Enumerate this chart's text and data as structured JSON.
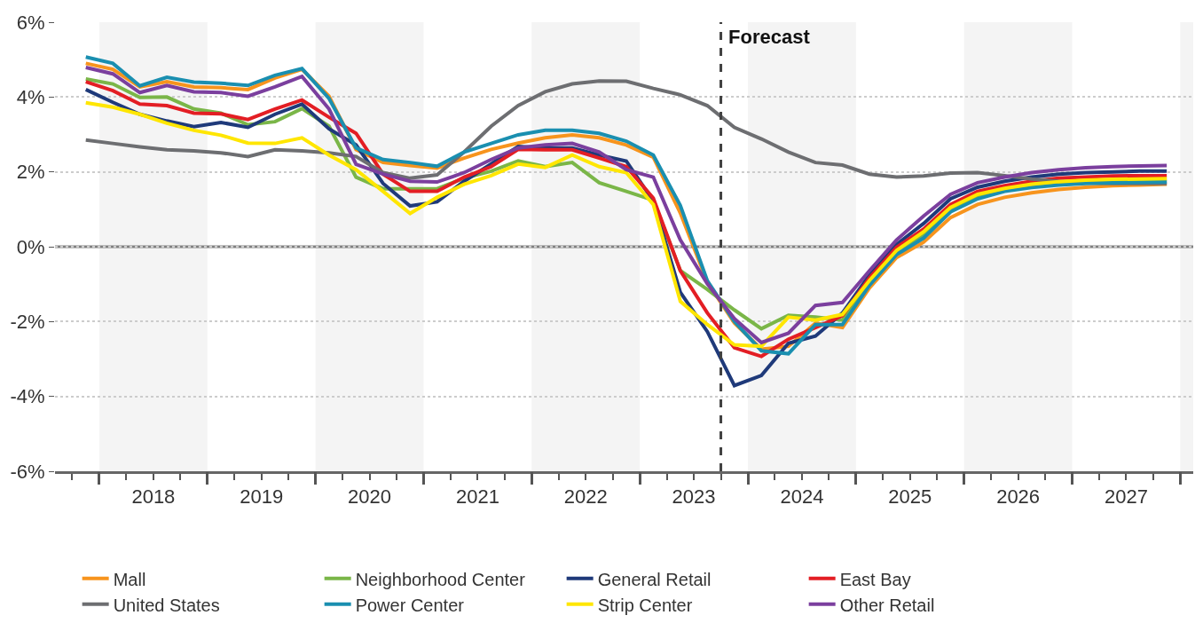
{
  "chart_data": {
    "type": "line",
    "x": [
      2017.875,
      2018.125,
      2018.375,
      2018.625,
      2018.875,
      2019.125,
      2019.375,
      2019.625,
      2019.875,
      2020.125,
      2020.375,
      2020.625,
      2020.875,
      2021.125,
      2021.375,
      2021.625,
      2021.875,
      2022.125,
      2022.375,
      2022.625,
      2022.875,
      2023.125,
      2023.375,
      2023.625,
      2023.875,
      2024.125,
      2024.375,
      2024.625,
      2024.875,
      2025.125,
      2025.375,
      2025.625,
      2025.875,
      2026.125,
      2026.375,
      2026.625,
      2026.875,
      2027.125,
      2027.375,
      2027.625,
      2027.875
    ],
    "series": [
      {
        "name": "Mall",
        "color": "#f7941d",
        "values": [
          4.9,
          4.74,
          4.27,
          4.41,
          4.27,
          4.25,
          4.2,
          4.51,
          4.74,
          4.02,
          2.6,
          2.25,
          2.17,
          2.1,
          2.37,
          2.6,
          2.77,
          2.91,
          2.99,
          2.91,
          2.72,
          2.39,
          0.9,
          -0.95,
          -2.04,
          -2.74,
          -2.66,
          -2.04,
          -2.16,
          -1.1,
          -0.29,
          0.12,
          0.78,
          1.13,
          1.32,
          1.44,
          1.53,
          1.59,
          1.63,
          1.65,
          1.67
        ]
      },
      {
        "name": "Neighborhood Center",
        "color": "#7ab648",
        "values": [
          4.48,
          4.35,
          3.99,
          4.0,
          3.68,
          3.57,
          3.26,
          3.34,
          3.69,
          3.22,
          1.86,
          1.55,
          1.55,
          1.55,
          1.83,
          2.02,
          2.29,
          2.14,
          2.25,
          1.71,
          1.48,
          1.24,
          -0.64,
          -1.14,
          -1.69,
          -2.19,
          -1.83,
          -1.88,
          -1.96,
          -0.99,
          -0.13,
          0.31,
          1.01,
          1.36,
          1.53,
          1.63,
          1.71,
          1.75,
          1.77,
          1.78,
          1.79
        ]
      },
      {
        "name": "General Retail",
        "color": "#1f3a7a",
        "values": [
          4.2,
          3.86,
          3.54,
          3.36,
          3.21,
          3.32,
          3.19,
          3.54,
          3.81,
          3.15,
          2.72,
          1.69,
          1.09,
          1.2,
          1.75,
          2.21,
          2.68,
          2.64,
          2.64,
          2.45,
          2.29,
          1.22,
          -1.22,
          -2.27,
          -3.71,
          -3.44,
          -2.58,
          -2.39,
          -1.77,
          -0.75,
          0.06,
          0.62,
          1.28,
          1.59,
          1.75,
          1.86,
          1.94,
          1.98,
          2.0,
          2.02,
          2.02
        ]
      },
      {
        "name": "East Bay",
        "color": "#e31e24",
        "values": [
          4.41,
          4.17,
          3.81,
          3.77,
          3.57,
          3.55,
          3.4,
          3.68,
          3.92,
          3.46,
          3.03,
          1.94,
          1.48,
          1.48,
          1.86,
          2.14,
          2.6,
          2.59,
          2.59,
          2.37,
          2.14,
          1.3,
          -0.64,
          -1.77,
          -2.7,
          -2.93,
          -2.47,
          -2.16,
          -1.84,
          -0.83,
          -0.02,
          0.47,
          1.13,
          1.48,
          1.63,
          1.75,
          1.83,
          1.86,
          1.89,
          1.9,
          1.9
        ]
      },
      {
        "name": "United States",
        "color": "#6d6e71",
        "values": [
          2.85,
          2.76,
          2.67,
          2.59,
          2.56,
          2.51,
          2.41,
          2.59,
          2.56,
          2.51,
          2.41,
          1.98,
          1.83,
          1.92,
          2.53,
          3.22,
          3.77,
          4.14,
          4.35,
          4.43,
          4.42,
          4.23,
          4.06,
          3.77,
          3.19,
          2.88,
          2.53,
          2.25,
          2.18,
          1.94,
          1.86,
          1.89,
          1.97,
          1.98,
          1.9,
          1.81,
          1.75,
          1.71,
          1.69,
          1.69,
          1.69
        ]
      },
      {
        "name": "Power Center",
        "color": "#1a8fb0",
        "values": [
          5.07,
          4.9,
          4.3,
          4.53,
          4.4,
          4.37,
          4.31,
          4.58,
          4.76,
          3.96,
          2.64,
          2.33,
          2.25,
          2.15,
          2.53,
          2.76,
          2.99,
          3.11,
          3.11,
          3.03,
          2.82,
          2.45,
          1.1,
          -0.91,
          -2.0,
          -2.78,
          -2.86,
          -2.08,
          -2.08,
          -1.03,
          -0.21,
          0.23,
          0.93,
          1.28,
          1.48,
          1.58,
          1.65,
          1.69,
          1.71,
          1.72,
          1.73
        ]
      },
      {
        "name": "Strip Center",
        "color": "#ffe600",
        "values": [
          3.85,
          3.73,
          3.54,
          3.3,
          3.11,
          2.98,
          2.77,
          2.76,
          2.91,
          2.45,
          2.06,
          1.48,
          0.89,
          1.32,
          1.67,
          1.9,
          2.21,
          2.12,
          2.45,
          2.14,
          1.98,
          1.13,
          -1.46,
          -2.08,
          -2.62,
          -2.66,
          -1.88,
          -1.96,
          -1.81,
          -0.9,
          -0.1,
          0.4,
          1.05,
          1.4,
          1.56,
          1.67,
          1.74,
          1.78,
          1.8,
          1.81,
          1.82
        ]
      },
      {
        "name": "Other Retail",
        "color": "#7b3f9e",
        "values": [
          4.79,
          4.62,
          4.12,
          4.31,
          4.14,
          4.12,
          4.02,
          4.27,
          4.55,
          3.68,
          2.2,
          1.94,
          1.75,
          1.73,
          1.98,
          2.33,
          2.64,
          2.72,
          2.76,
          2.53,
          2.06,
          1.86,
          0.18,
          -0.99,
          -1.92,
          -2.56,
          -2.31,
          -1.57,
          -1.49,
          -0.64,
          0.18,
          0.82,
          1.4,
          1.71,
          1.86,
          1.98,
          2.06,
          2.11,
          2.14,
          2.16,
          2.17
        ]
      }
    ],
    "xlim": [
      2017.59,
      2028.12
    ],
    "xticks": [
      {
        "value": 2017.75,
        "label": null
      },
      {
        "value": 2018,
        "label": null
      },
      {
        "value": 2018.25,
        "label": null
      },
      {
        "value": 2018.5,
        "label": "2018"
      },
      {
        "value": 2018.75,
        "label": null
      },
      {
        "value": 2019,
        "label": null
      },
      {
        "value": 2019.25,
        "label": null
      },
      {
        "value": 2019.5,
        "label": "2019"
      },
      {
        "value": 2019.75,
        "label": null
      },
      {
        "value": 2020,
        "label": null
      },
      {
        "value": 2020.25,
        "label": null
      },
      {
        "value": 2020.5,
        "label": "2020"
      },
      {
        "value": 2020.75,
        "label": null
      },
      {
        "value": 2021,
        "label": null
      },
      {
        "value": 2021.25,
        "label": null
      },
      {
        "value": 2021.5,
        "label": "2021"
      },
      {
        "value": 2021.75,
        "label": null
      },
      {
        "value": 2022,
        "label": null
      },
      {
        "value": 2022.25,
        "label": null
      },
      {
        "value": 2022.5,
        "label": "2022"
      },
      {
        "value": 2022.75,
        "label": null
      },
      {
        "value": 2023,
        "label": null
      },
      {
        "value": 2023.25,
        "label": null
      },
      {
        "value": 2023.5,
        "label": "2023"
      },
      {
        "value": 2023.75,
        "label": null
      },
      {
        "value": 2024,
        "label": null
      },
      {
        "value": 2024.25,
        "label": null
      },
      {
        "value": 2024.5,
        "label": "2024"
      },
      {
        "value": 2024.75,
        "label": null
      },
      {
        "value": 2025,
        "label": null
      },
      {
        "value": 2025.25,
        "label": null
      },
      {
        "value": 2025.5,
        "label": "2025"
      },
      {
        "value": 2025.75,
        "label": null
      },
      {
        "value": 2026,
        "label": null
      },
      {
        "value": 2026.25,
        "label": null
      },
      {
        "value": 2026.5,
        "label": "2026"
      },
      {
        "value": 2026.75,
        "label": null
      },
      {
        "value": 2027,
        "label": null
      },
      {
        "value": 2027.25,
        "label": null
      },
      {
        "value": 2027.5,
        "label": "2027"
      },
      {
        "value": 2027.75,
        "label": null
      },
      {
        "value": 2028,
        "label": null
      }
    ],
    "ylim": [
      -6,
      6
    ],
    "yticks": [
      {
        "value": -6,
        "label": "-6%"
      },
      {
        "value": -4,
        "label": "-4%"
      },
      {
        "value": -2,
        "label": "-2%"
      },
      {
        "value": 0,
        "label": "0%"
      },
      {
        "value": 2,
        "label": "2%"
      },
      {
        "value": 4,
        "label": "4%"
      },
      {
        "value": 6,
        "label": "6%"
      }
    ],
    "grid": "y",
    "ref_lines": [
      {
        "axis": "y",
        "value": 0,
        "color": "#808080",
        "line_style": "solid"
      },
      {
        "axis": "x",
        "value": 2023.75,
        "label": "Forecast",
        "color": "#404040",
        "line_style": "dashed"
      }
    ],
    "bands": [
      {
        "axis": "x",
        "from": 2018,
        "to": 2019,
        "color": "#f4f4f4"
      },
      {
        "axis": "x",
        "from": 2020,
        "to": 2021,
        "color": "#f4f4f4"
      },
      {
        "axis": "x",
        "from": 2022,
        "to": 2023,
        "color": "#f4f4f4"
      },
      {
        "axis": "x",
        "from": 2024,
        "to": 2025,
        "color": "#f4f4f4"
      },
      {
        "axis": "x",
        "from": 2026,
        "to": 2027,
        "color": "#f4f4f4"
      },
      {
        "axis": "x",
        "from": 2028,
        "to": 2028.12,
        "color": "#f4f4f4"
      }
    ],
    "legend": "bottom",
    "marker": "none",
    "line_style": "solid"
  }
}
